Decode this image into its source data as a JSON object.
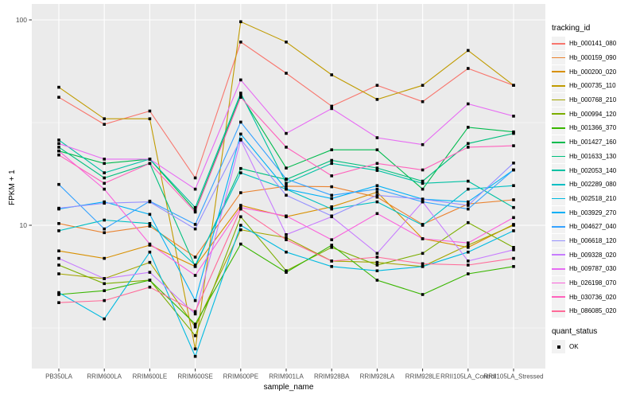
{
  "chart_data": {
    "type": "line",
    "title": "",
    "xlabel": "sample_name",
    "ylabel": "FPKM + 1",
    "y_scale": "log10",
    "ylim": [
      2.0,
      120
    ],
    "y_ticks": [
      "10",
      "100"
    ],
    "y_tick_values": [
      10,
      100
    ],
    "y_minor_tick_values": [
      3.162,
      31.62
    ],
    "grid": true,
    "panel_bg": "#EBEBEB",
    "grid_color": "#FFFFFF",
    "point_shape": "filled-square",
    "point_color": "#000000",
    "legend_position": "right",
    "categories": [
      "PB350LA",
      "RRIM600LA",
      "RRIM600LE",
      "RRIM600SE",
      "RRIM600PE",
      "RRIM901LA",
      "RRIM928BA",
      "RRIM928LA",
      "RRIM928LE",
      "RRII105LA_Control",
      "RRII105LA_Stressed"
    ],
    "series": [
      {
        "name": "Hb_000141_080",
        "color": "#F8766D",
        "values": [
          42,
          31,
          36,
          17,
          78,
          55,
          38,
          48,
          40,
          58,
          48
        ]
      },
      {
        "name": "Hb_000159_090",
        "color": "#EA8331",
        "values": [
          10.2,
          9.2,
          9.9,
          7.0,
          14.4,
          15.5,
          15.4,
          13.7,
          10.1,
          12.7,
          13.3
        ]
      },
      {
        "name": "Hb_000200_020",
        "color": "#D89000",
        "values": [
          7.5,
          6.9,
          8.0,
          6.3,
          12.5,
          11,
          12.3,
          14.5,
          8.6,
          7.8,
          10.1
        ]
      },
      {
        "name": "Hb_000735_110",
        "color": "#C09B00",
        "values": [
          47,
          33,
          33,
          2.5,
          98,
          78,
          54,
          41,
          48,
          71,
          48
        ]
      },
      {
        "name": "Hb_000768_210",
        "color": "#A3A500",
        "values": [
          5.8,
          5.5,
          6.6,
          3.2,
          9.5,
          8.7,
          6.7,
          6.6,
          6.3,
          8.0,
          10.0
        ]
      },
      {
        "name": "Hb_000994_120",
        "color": "#7CAE00",
        "values": [
          6.4,
          5.2,
          5.4,
          2.9,
          11,
          6.0,
          7.8,
          6.4,
          7.3,
          10.3,
          7.8
        ]
      },
      {
        "name": "Hb_001366_370",
        "color": "#39B600",
        "values": [
          4.6,
          4.8,
          5.4,
          3.3,
          8.1,
          5.9,
          8.0,
          5.4,
          4.6,
          5.8,
          6.3
        ]
      },
      {
        "name": "Hb_001427_160",
        "color": "#00BB4E",
        "values": [
          23,
          20,
          21,
          11.8,
          43,
          19,
          23.3,
          23.3,
          15,
          30,
          28.5
        ]
      },
      {
        "name": "Hb_001633_130",
        "color": "#00BF7D",
        "values": [
          24,
          17,
          20,
          6.3,
          18.9,
          16.7,
          20.7,
          19,
          16.4,
          25,
          28
        ]
      },
      {
        "name": "Hb_002053_140",
        "color": "#00C1A3",
        "values": [
          26,
          18,
          21,
          12.2,
          44,
          16,
          20,
          18.5,
          16,
          16.4,
          12.2
        ]
      },
      {
        "name": "Hb_002289_080",
        "color": "#00BFC4",
        "values": [
          9.4,
          10.6,
          10.2,
          6.4,
          18,
          15,
          12,
          13,
          10,
          15,
          15.6
        ]
      },
      {
        "name": "Hb_002518_210",
        "color": "#00BAE0",
        "values": [
          4.7,
          3.5,
          7.4,
          2.3,
          10,
          7.4,
          6.3,
          6.0,
          6.3,
          7.4,
          9.4
        ]
      },
      {
        "name": "Hb_003929_270",
        "color": "#00B0F6",
        "values": [
          12,
          13,
          11.3,
          4.3,
          27.8,
          15,
          13.5,
          15.6,
          13.4,
          13,
          18.6
        ]
      },
      {
        "name": "Hb_004627_040",
        "color": "#35A2FF",
        "values": [
          15.8,
          9.6,
          13.1,
          10.1,
          31.8,
          16.8,
          14,
          15,
          13,
          12,
          18.6
        ]
      },
      {
        "name": "Hb_006618_120",
        "color": "#9590FF",
        "values": [
          12.1,
          12.8,
          13,
          9.6,
          26.2,
          14,
          11.1,
          14,
          13.4,
          12.5,
          20.1
        ]
      },
      {
        "name": "Hb_009328_020",
        "color": "#C77CFF",
        "values": [
          6.9,
          5.5,
          5.9,
          3.7,
          26,
          9,
          11,
          7.3,
          13,
          6.7,
          7.6
        ]
      },
      {
        "name": "Hb_009787_030",
        "color": "#E76BF3",
        "values": [
          25,
          21,
          21,
          15,
          51,
          28,
          37,
          26.7,
          24.7,
          39,
          34
        ]
      },
      {
        "name": "Hb_026198_070",
        "color": "#FA62DB",
        "values": [
          23,
          15,
          8.1,
          5.7,
          12.2,
          11.1,
          8.5,
          11.4,
          8.6,
          8.2,
          10.9
        ]
      },
      {
        "name": "Hb_030736_020",
        "color": "#FF62BC",
        "values": [
          22,
          16,
          20,
          11.6,
          42,
          24,
          17.4,
          20,
          18.6,
          24,
          24.4
        ]
      },
      {
        "name": "Hb_086085_020",
        "color": "#FF6A98",
        "values": [
          4.2,
          4.3,
          5.0,
          3.8,
          12,
          8.5,
          6.7,
          7.0,
          6.5,
          6.4,
          6.9
        ]
      }
    ]
  },
  "legend": {
    "tracking_title": "tracking_id",
    "quant_title": "quant_status",
    "quant_items": [
      {
        "label": "OK",
        "marker": "black-square"
      }
    ]
  },
  "axis_style": {
    "tick_label_color": "#4D4D4D",
    "tick_mark_color": "#333333"
  }
}
